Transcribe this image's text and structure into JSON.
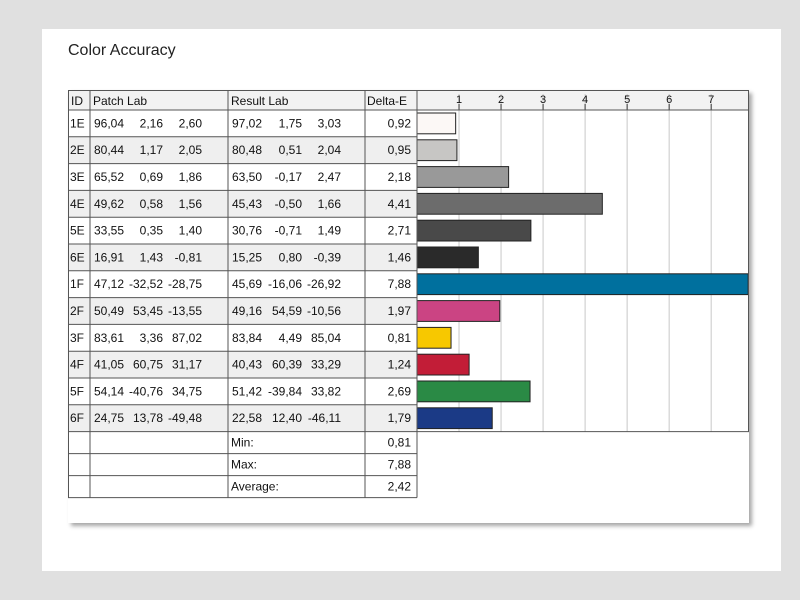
{
  "title": "Color Accuracy",
  "chart_data": {
    "type": "bar",
    "orientation": "horizontal",
    "title": "Color Accuracy",
    "columns": {
      "id": "ID",
      "patch": "Patch Lab",
      "result": "Result Lab",
      "delta": "Delta-E"
    },
    "xlim": [
      0,
      7.9
    ],
    "x_ticks": [
      "1",
      "2",
      "3",
      "4",
      "5",
      "6",
      "7"
    ],
    "rows": [
      {
        "id": "1E",
        "patch": [
          "96,04",
          "2,16",
          "2,60"
        ],
        "result": [
          "97,02",
          "1,75",
          "3,03"
        ],
        "delta_label": "0,92",
        "value": 0.92,
        "color": "#fcf8f6"
      },
      {
        "id": "2E",
        "patch": [
          "80,44",
          "1,17",
          "2,05"
        ],
        "result": [
          "80,48",
          "0,51",
          "2,04"
        ],
        "delta_label": "0,95",
        "value": 0.95,
        "color": "#c7c6c4"
      },
      {
        "id": "3E",
        "patch": [
          "65,52",
          "0,69",
          "1,86"
        ],
        "result": [
          "63,50",
          "-0,17",
          "2,47"
        ],
        "delta_label": "2,18",
        "value": 2.18,
        "color": "#999999"
      },
      {
        "id": "4E",
        "patch": [
          "49,62",
          "0,58",
          "1,56"
        ],
        "result": [
          "45,43",
          "-0,50",
          "1,66"
        ],
        "delta_label": "4,41",
        "value": 4.41,
        "color": "#6c6c6c"
      },
      {
        "id": "5E",
        "patch": [
          "33,55",
          "0,35",
          "1,40"
        ],
        "result": [
          "30,76",
          "-0,71",
          "1,49"
        ],
        "delta_label": "2,71",
        "value": 2.71,
        "color": "#494949"
      },
      {
        "id": "6E",
        "patch": [
          "16,91",
          "1,43",
          "-0,81"
        ],
        "result": [
          "15,25",
          "0,80",
          "-0,39"
        ],
        "delta_label": "1,46",
        "value": 1.46,
        "color": "#2a2a2a"
      },
      {
        "id": "1F",
        "patch": [
          "47,12",
          "-32,52",
          "-28,75"
        ],
        "result": [
          "45,69",
          "-16,06",
          "-26,92"
        ],
        "delta_label": "7,88",
        "value": 7.88,
        "color": "#00709e"
      },
      {
        "id": "2F",
        "patch": [
          "50,49",
          "53,45",
          "-13,55"
        ],
        "result": [
          "49,16",
          "54,59",
          "-10,56"
        ],
        "delta_label": "1,97",
        "value": 1.97,
        "color": "#cb4483"
      },
      {
        "id": "3F",
        "patch": [
          "83,61",
          "3,36",
          "87,02"
        ],
        "result": [
          "83,84",
          "4,49",
          "85,04"
        ],
        "delta_label": "0,81",
        "value": 0.81,
        "color": "#f7c800"
      },
      {
        "id": "4F",
        "patch": [
          "41,05",
          "60,75",
          "31,17"
        ],
        "result": [
          "40,43",
          "60,39",
          "33,29"
        ],
        "delta_label": "1,24",
        "value": 1.24,
        "color": "#c21d37"
      },
      {
        "id": "5F",
        "patch": [
          "54,14",
          "-40,76",
          "34,75"
        ],
        "result": [
          "51,42",
          "-39,84",
          "33,82"
        ],
        "delta_label": "2,69",
        "value": 2.69,
        "color": "#2a8a45"
      },
      {
        "id": "6F",
        "patch": [
          "24,75",
          "13,78",
          "-49,48"
        ],
        "result": [
          "22,58",
          "12,40",
          "-46,11"
        ],
        "delta_label": "1,79",
        "value": 1.79,
        "color": "#1b3a86"
      }
    ],
    "summary": [
      {
        "label": "Min:",
        "value": "0,81"
      },
      {
        "label": "Max:",
        "value": "7,88"
      },
      {
        "label": "Average:",
        "value": "2,42"
      }
    ]
  }
}
